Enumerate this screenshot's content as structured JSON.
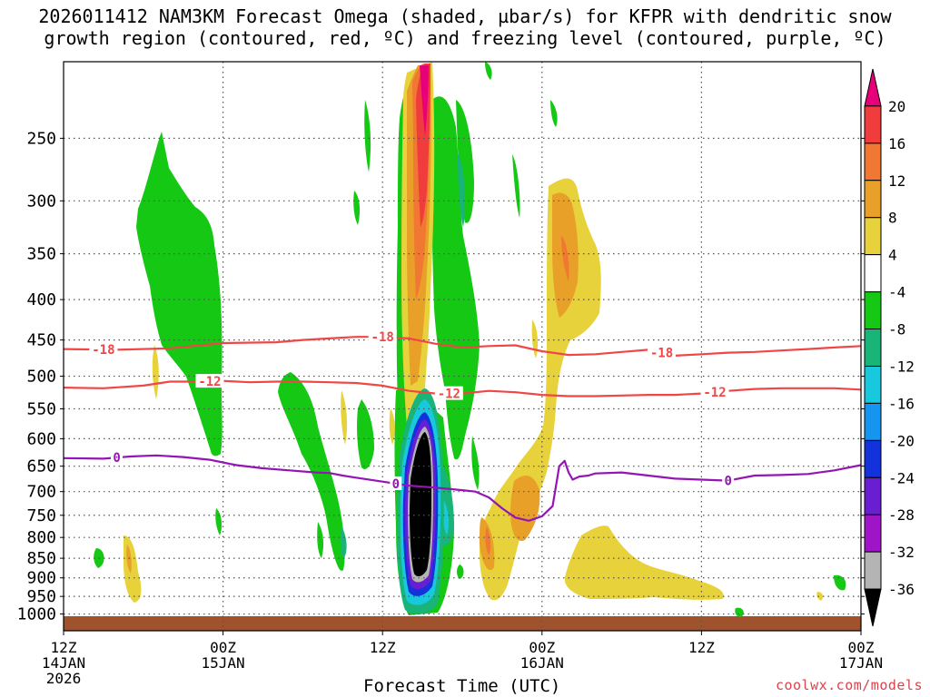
{
  "title_line1": "2026011412 NAM3KM Forecast Omega (shaded, µbar/s) for KFPR with dendritic snow",
  "title_line2": "growth region (contoured, red, ºC) and freezing level (contoured, purple, ºC)",
  "x_axis_label": "Forecast Time (UTC)",
  "credit": "coolwx.com/models",
  "chart_data": {
    "type": "heatmap",
    "title": "2026011412 NAM3KM Forecast Omega (shaded, µbar/s) for KFPR with dendritic snow growth region (contoured, red, ºC) and freezing level (contoured, purple, ºC)",
    "xlabel": "Forecast Time (UTC)",
    "ylabel": "",
    "x_range_hours": [
      0,
      60
    ],
    "y_range_hpa": [
      200,
      1050
    ],
    "y_scale": "log",
    "grid": true,
    "x_ticks": [
      {
        "h": 0,
        "l1": "12Z",
        "l2": "14JAN",
        "l3": "2026"
      },
      {
        "h": 12,
        "l1": "00Z",
        "l2": "15JAN",
        "l3": ""
      },
      {
        "h": 24,
        "l1": "12Z",
        "l2": "",
        "l3": ""
      },
      {
        "h": 36,
        "l1": "00Z",
        "l2": "16JAN",
        "l3": ""
      },
      {
        "h": 48,
        "l1": "12Z",
        "l2": "",
        "l3": ""
      },
      {
        "h": 60,
        "l1": "00Z",
        "l2": "17JAN",
        "l3": ""
      }
    ],
    "y_ticks": [
      250,
      300,
      350,
      400,
      450,
      500,
      550,
      600,
      650,
      700,
      750,
      800,
      850,
      900,
      950,
      1000
    ],
    "colorbar": {
      "labels": [
        20,
        16,
        12,
        8,
        4,
        -4,
        -8,
        -12,
        -16,
        -20,
        -24,
        -28,
        -32,
        -36
      ],
      "colors": [
        "#e8007a",
        "#f03c3c",
        "#f07832",
        "#e8a028",
        "#e8d23c",
        "#ffffff",
        "#14c814",
        "#18b478",
        "#18c8dc",
        "#1496f0",
        "#1432dc",
        "#6a1ed2",
        "#a014c8",
        "#b4b4b4",
        "#000000"
      ]
    },
    "contours": {
      "dendritic_minus18": {
        "label": "-18",
        "color": "#f04646",
        "points": [
          [
            0,
            462
          ],
          [
            4,
            463
          ],
          [
            8,
            461
          ],
          [
            12,
            454
          ],
          [
            16,
            453
          ],
          [
            18,
            450
          ],
          [
            20,
            448
          ],
          [
            22,
            446
          ],
          [
            24,
            446
          ],
          [
            26,
            448
          ],
          [
            28,
            455
          ],
          [
            30,
            460
          ],
          [
            32,
            458
          ],
          [
            34,
            457
          ],
          [
            36,
            465
          ],
          [
            38,
            470
          ],
          [
            40,
            469
          ],
          [
            42,
            466
          ],
          [
            44,
            463
          ],
          [
            46,
            471
          ],
          [
            48,
            469
          ],
          [
            50,
            467
          ],
          [
            52,
            466
          ],
          [
            54,
            464
          ],
          [
            56,
            462
          ],
          [
            58,
            460
          ],
          [
            60,
            458
          ]
        ]
      },
      "dendritic_minus12": {
        "label": "-12",
        "color": "#f04646",
        "points": [
          [
            0,
            517
          ],
          [
            3,
            518
          ],
          [
            6,
            514
          ],
          [
            8,
            508
          ],
          [
            10,
            508
          ],
          [
            12,
            507
          ],
          [
            14,
            509
          ],
          [
            16,
            508
          ],
          [
            18,
            508
          ],
          [
            20,
            509
          ],
          [
            22,
            510
          ],
          [
            24,
            514
          ],
          [
            26,
            522
          ],
          [
            28,
            526
          ],
          [
            30,
            526
          ],
          [
            32,
            522
          ],
          [
            34,
            524
          ],
          [
            36,
            528
          ],
          [
            38,
            530
          ],
          [
            40,
            530
          ],
          [
            42,
            529
          ],
          [
            44,
            528
          ],
          [
            46,
            528
          ],
          [
            48,
            526
          ],
          [
            50,
            522
          ],
          [
            52,
            519
          ],
          [
            54,
            518
          ],
          [
            56,
            518
          ],
          [
            58,
            518
          ],
          [
            60,
            520
          ]
        ]
      },
      "freezing_level": {
        "label": "0",
        "color": "#9414b4",
        "points": [
          [
            0,
            635
          ],
          [
            3,
            636
          ],
          [
            5,
            632
          ],
          [
            7,
            630
          ],
          [
            9,
            633
          ],
          [
            11,
            638
          ],
          [
            13,
            648
          ],
          [
            15,
            654
          ],
          [
            17,
            658
          ],
          [
            19,
            662
          ],
          [
            20,
            663
          ],
          [
            21,
            668
          ],
          [
            22,
            672
          ],
          [
            24,
            680
          ],
          [
            26,
            688
          ],
          [
            28,
            692
          ],
          [
            30,
            697
          ],
          [
            31,
            700
          ],
          [
            32,
            712
          ],
          [
            33,
            735
          ],
          [
            34,
            755
          ],
          [
            35,
            762
          ],
          [
            36,
            752
          ],
          [
            36.8,
            730
          ],
          [
            37.3,
            650
          ],
          [
            37.7,
            640
          ],
          [
            38,
            662
          ],
          [
            38.3,
            676
          ],
          [
            38.8,
            670
          ],
          [
            39.5,
            668
          ],
          [
            40,
            664
          ],
          [
            42,
            662
          ],
          [
            44,
            668
          ],
          [
            46,
            674
          ],
          [
            48,
            676
          ],
          [
            50,
            678
          ],
          [
            52,
            668
          ],
          [
            54,
            667
          ],
          [
            56,
            665
          ],
          [
            58,
            658
          ],
          [
            60,
            648
          ]
        ]
      }
    }
  }
}
